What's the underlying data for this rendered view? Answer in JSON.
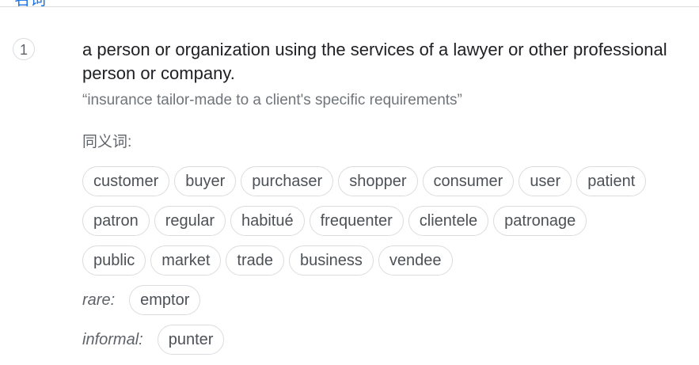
{
  "pos": "名词",
  "sense": {
    "number": "1",
    "definition": "a person or organization using the services of a lawyer or other professional person or company.",
    "example": "“insurance tailor-made to a client's specific requirements”"
  },
  "synonyms": {
    "heading": "同义词:",
    "row1": [
      "customer",
      "buyer",
      "purchaser",
      "shopper",
      "consumer",
      "user",
      "patient"
    ],
    "row2": [
      "patron",
      "regular",
      "habitué",
      "frequenter",
      "clientele",
      "patronage"
    ],
    "row3": [
      "public",
      "market",
      "trade",
      "business",
      "vendee"
    ],
    "rare": {
      "label": "rare:",
      "words": [
        "emptor"
      ]
    },
    "informal": {
      "label": "informal:",
      "words": [
        "punter"
      ]
    }
  }
}
